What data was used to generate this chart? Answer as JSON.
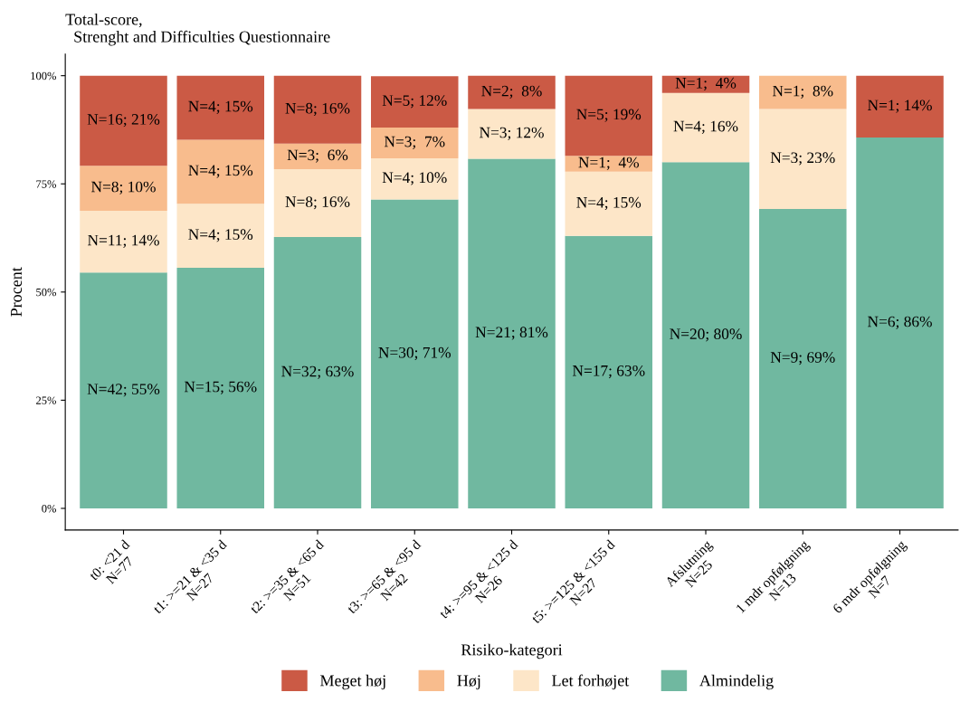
{
  "chart_data": {
    "type": "bar",
    "stacked": true,
    "title": "Total-score,\n  Strenght and Difficulties Questionnaire",
    "xlabel": "Risiko-kategori",
    "ylabel": "Procent",
    "categories": [
      "t0: <21 d\nN=77",
      "t1: >=21 & <35 d\nN=27",
      "t2: >=35 & <65 d\nN=51",
      "t3: >=65 & <95 d\nN=42",
      "t4: >=95 & <125 d\nN=26",
      "t5: >=125 & <155 d\nN=27",
      "Afslutning\nN=25",
      "1 mdr opfølgning\nN=13",
      "6 mdr opfølgning\nN=7"
    ],
    "series": [
      {
        "name": "Almindelig",
        "color": "#70b8a0",
        "values": [
          54.5,
          55.6,
          62.7,
          71.4,
          80.8,
          63.0,
          80.0,
          69.2,
          85.7
        ],
        "value_labels": [
          "N=42; 55%",
          "N=15; 56%",
          "N=32; 63%",
          "N=30; 71%",
          "N=21; 81%",
          "N=17; 63%",
          "N=20; 80%",
          "N=9; 69%",
          "N=6; 86%"
        ]
      },
      {
        "name": "Let forhøjet",
        "color": "#fde6c8",
        "values": [
          14.3,
          14.8,
          15.7,
          9.5,
          11.5,
          14.8,
          16.0,
          23.1,
          null
        ],
        "value_labels": [
          "N=11; 14%",
          "N=4; 15%",
          "N=8; 16%",
          "N=4; 10%",
          "N=3; 12%",
          "N=4; 15%",
          "N=4; 16%",
          "N=3; 23%",
          null
        ]
      },
      {
        "name": "Høj",
        "color": "#f8bc8d",
        "values": [
          10.4,
          14.8,
          5.9,
          7.1,
          null,
          3.7,
          null,
          7.7,
          null
        ],
        "value_labels": [
          "N=8; 10%",
          "N=4; 15%",
          "N=3;  6%",
          "N=3;  7%",
          null,
          "N=1;  4%",
          null,
          "N=1;  8%",
          null
        ]
      },
      {
        "name": "Meget høj",
        "color": "#cb5a45",
        "values": [
          20.8,
          14.8,
          15.7,
          11.9,
          7.7,
          18.5,
          4.0,
          null,
          14.3
        ],
        "value_labels": [
          "N=16; 21%",
          "N=4; 15%",
          "N=8; 16%",
          "N=5; 12%",
          "N=2;  8%",
          "N=5; 19%",
          "N=1;  4%",
          null,
          "N=1; 14%"
        ]
      }
    ],
    "ylim": [
      -5,
      105
    ],
    "yticks": [
      {
        "value": 0,
        "label": "0%"
      },
      {
        "value": 25,
        "label": "25%"
      },
      {
        "value": 50,
        "label": "50%"
      },
      {
        "value": 75,
        "label": "75%"
      },
      {
        "value": 100,
        "label": "100%"
      }
    ],
    "legend": "bottom"
  }
}
